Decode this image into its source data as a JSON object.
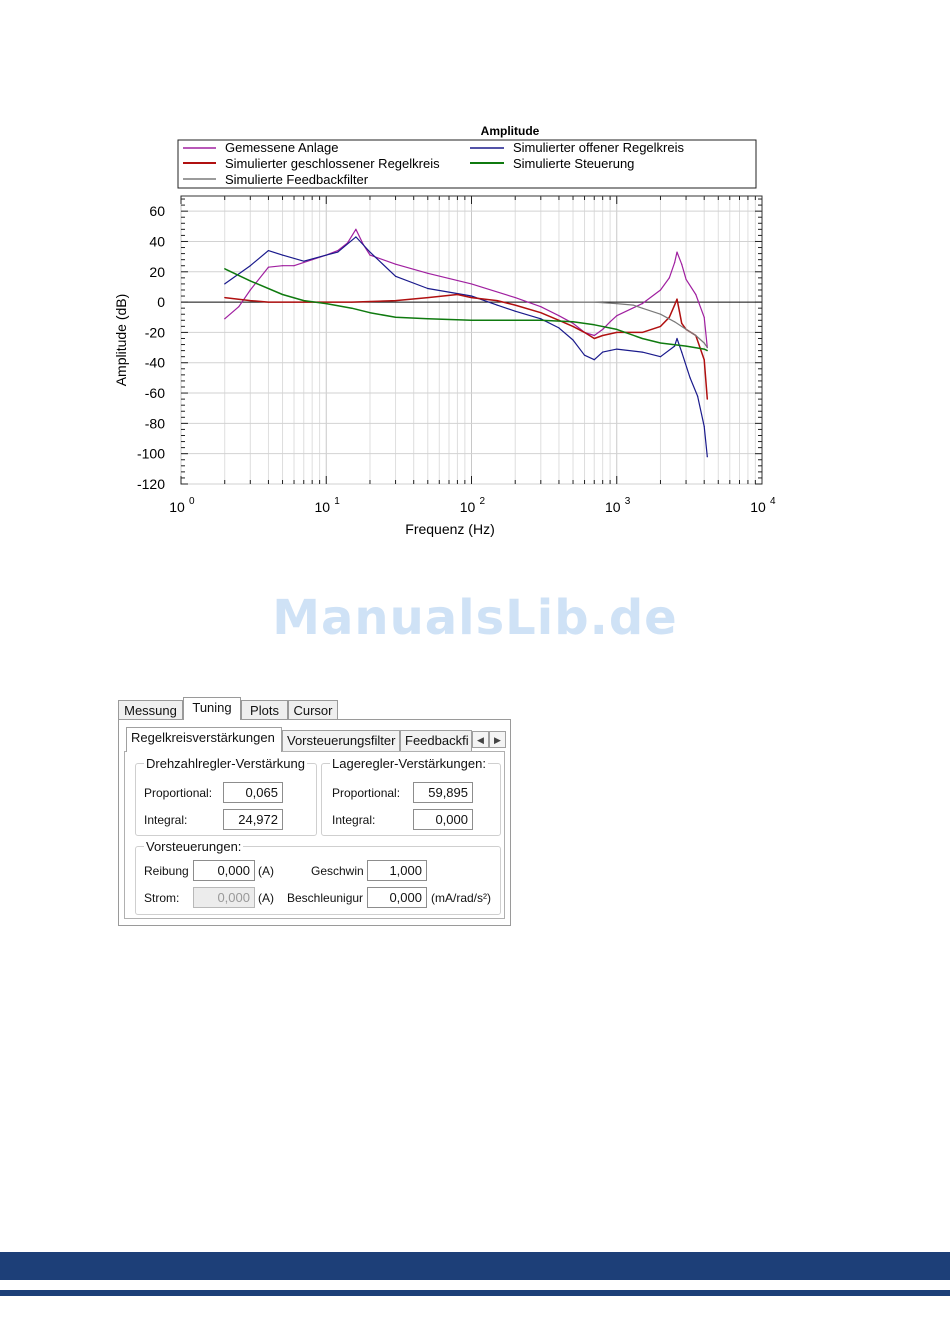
{
  "chart_data": {
    "type": "line",
    "title": "Amplitude",
    "xlabel": "Frequenz (Hz)",
    "ylabel": "Amplitude (dB)",
    "xscale": "log",
    "xlim": [
      1,
      10000
    ],
    "ylim": [
      -120,
      70
    ],
    "x_ticks": [
      1,
      10,
      100,
      1000,
      10000
    ],
    "x_tick_labels": [
      {
        "base": "10",
        "exp": "0"
      },
      {
        "base": "10",
        "exp": "1"
      },
      {
        "base": "10",
        "exp": "2"
      },
      {
        "base": "10",
        "exp": "3"
      },
      {
        "base": "10",
        "exp": "4"
      }
    ],
    "y_ticks": [
      "60",
      "40",
      "20",
      "0",
      "-20",
      "-40",
      "-60",
      "-80",
      "-100",
      "-120"
    ],
    "grid": true,
    "legend_position": "top",
    "series": [
      {
        "name": "Gemessene Anlage",
        "color": "#a020a0",
        "x": [
          2,
          2.5,
          3,
          4,
          5,
          6,
          8,
          10,
          12,
          14,
          16,
          18,
          20,
          30,
          50,
          100,
          200,
          300,
          400,
          500,
          600,
          700,
          800,
          900,
          1000,
          1500,
          2000,
          2300,
          2500,
          2600,
          2800,
          3000,
          3500,
          4000,
          4200
        ],
        "y": [
          -11,
          -3,
          8,
          23,
          24,
          24,
          28,
          31,
          34,
          39,
          48,
          38,
          31,
          25,
          19,
          12,
          3,
          -3,
          -9,
          -14,
          -20,
          -22,
          -18,
          -13,
          -9,
          -1,
          8,
          16,
          26,
          33,
          25,
          15,
          5,
          -10,
          -30
        ]
      },
      {
        "name": "Simulierter offener Regelkreis",
        "color": "#1a1a8c",
        "x": [
          2,
          3,
          4,
          5,
          7,
          10,
          12,
          16,
          20,
          30,
          50,
          100,
          150,
          200,
          300,
          400,
          500,
          600,
          700,
          800,
          1000,
          1500,
          2000,
          2500,
          2600,
          2800,
          3200,
          3600,
          4000,
          4200
        ],
        "y": [
          12,
          24,
          34,
          31,
          27,
          31,
          33,
          43,
          33,
          17,
          9,
          4,
          -2,
          -6,
          -11,
          -17,
          -25,
          -35,
          -38,
          -33,
          -31,
          -33,
          -36,
          -29,
          -24,
          -33,
          -50,
          -62,
          -82,
          -102
        ]
      },
      {
        "name": "Simulierter geschlossener Regelkreis",
        "color": "#b01010",
        "x": [
          2,
          3,
          4,
          6,
          10,
          15,
          30,
          50,
          80,
          100,
          150,
          200,
          300,
          400,
          500,
          600,
          700,
          800,
          1000,
          1500,
          2000,
          2300,
          2500,
          2600,
          2700,
          2800,
          3000,
          3500,
          4000,
          4200
        ],
        "y": [
          3,
          1,
          0,
          0,
          0,
          0,
          1,
          3,
          5,
          3,
          1,
          -2,
          -7,
          -12,
          -16,
          -20,
          -24,
          -22,
          -20,
          -20,
          -16,
          -10,
          -2,
          2,
          -6,
          -14,
          -18,
          -22,
          -38,
          -64
        ]
      },
      {
        "name": "Simulierte Steuerung",
        "color": "#0f7a0f",
        "x": [
          2,
          3,
          5,
          7,
          10,
          15,
          20,
          30,
          50,
          100,
          200,
          300,
          500,
          700,
          1000,
          1500,
          2000,
          3000,
          4000,
          4200
        ],
        "y": [
          22,
          14,
          5,
          1,
          -1,
          -4,
          -7,
          -10,
          -11,
          -12,
          -12,
          -12,
          -13,
          -15,
          -18,
          -24,
          -27,
          -29,
          -31,
          -32
        ]
      },
      {
        "name": "Simulierte Feedbackfilter",
        "color": "#7a7a7a",
        "x": [
          300,
          500,
          700,
          1000,
          1300,
          1500,
          2000,
          2500,
          3000,
          3500,
          4000,
          4200
        ],
        "y": [
          0,
          0,
          0,
          -1,
          -2,
          -4,
          -8,
          -13,
          -18,
          -22,
          -27,
          -30
        ]
      }
    ],
    "reference_line": 0
  },
  "watermark": "ManualsLib.de",
  "tuning_panel": {
    "tabs": [
      "Messung",
      "Tuning",
      "Plots",
      "Cursor"
    ],
    "active_tab": "Tuning",
    "subtabs": [
      "Regelkreisverstärkungen",
      "Vorsteuerungsfilter",
      "Feedbackfi"
    ],
    "active_subtab": "Regelkreisverstärkungen",
    "scroll_left": "◀",
    "scroll_right": "▶",
    "drehzahl": {
      "title": "Drehzahlregler-Verstärkung",
      "proportional_label": "Proportional:",
      "proportional_value": "0,065",
      "integral_label": "Integral:",
      "integral_value": "24,972"
    },
    "lage": {
      "title": "Lageregler-Verstärkungen:",
      "proportional_label": "Proportional:",
      "proportional_value": "59,895",
      "integral_label": "Integral:",
      "integral_value": "0,000"
    },
    "vorsteuerungen": {
      "title": "Vorsteuerungen:",
      "reibung_label": "Reibung",
      "reibung_value": "0,000",
      "reibung_unit": "(A)",
      "geschwin_label": "Geschwin",
      "geschwin_value": "1,000",
      "strom_label": "Strom:",
      "strom_value": "0,000",
      "strom_unit": "(A)",
      "beschleunigung_label": "Beschleunigur",
      "beschleunigung_value": "0,000",
      "beschleunigung_unit": "(mA/rad/s²)"
    }
  }
}
